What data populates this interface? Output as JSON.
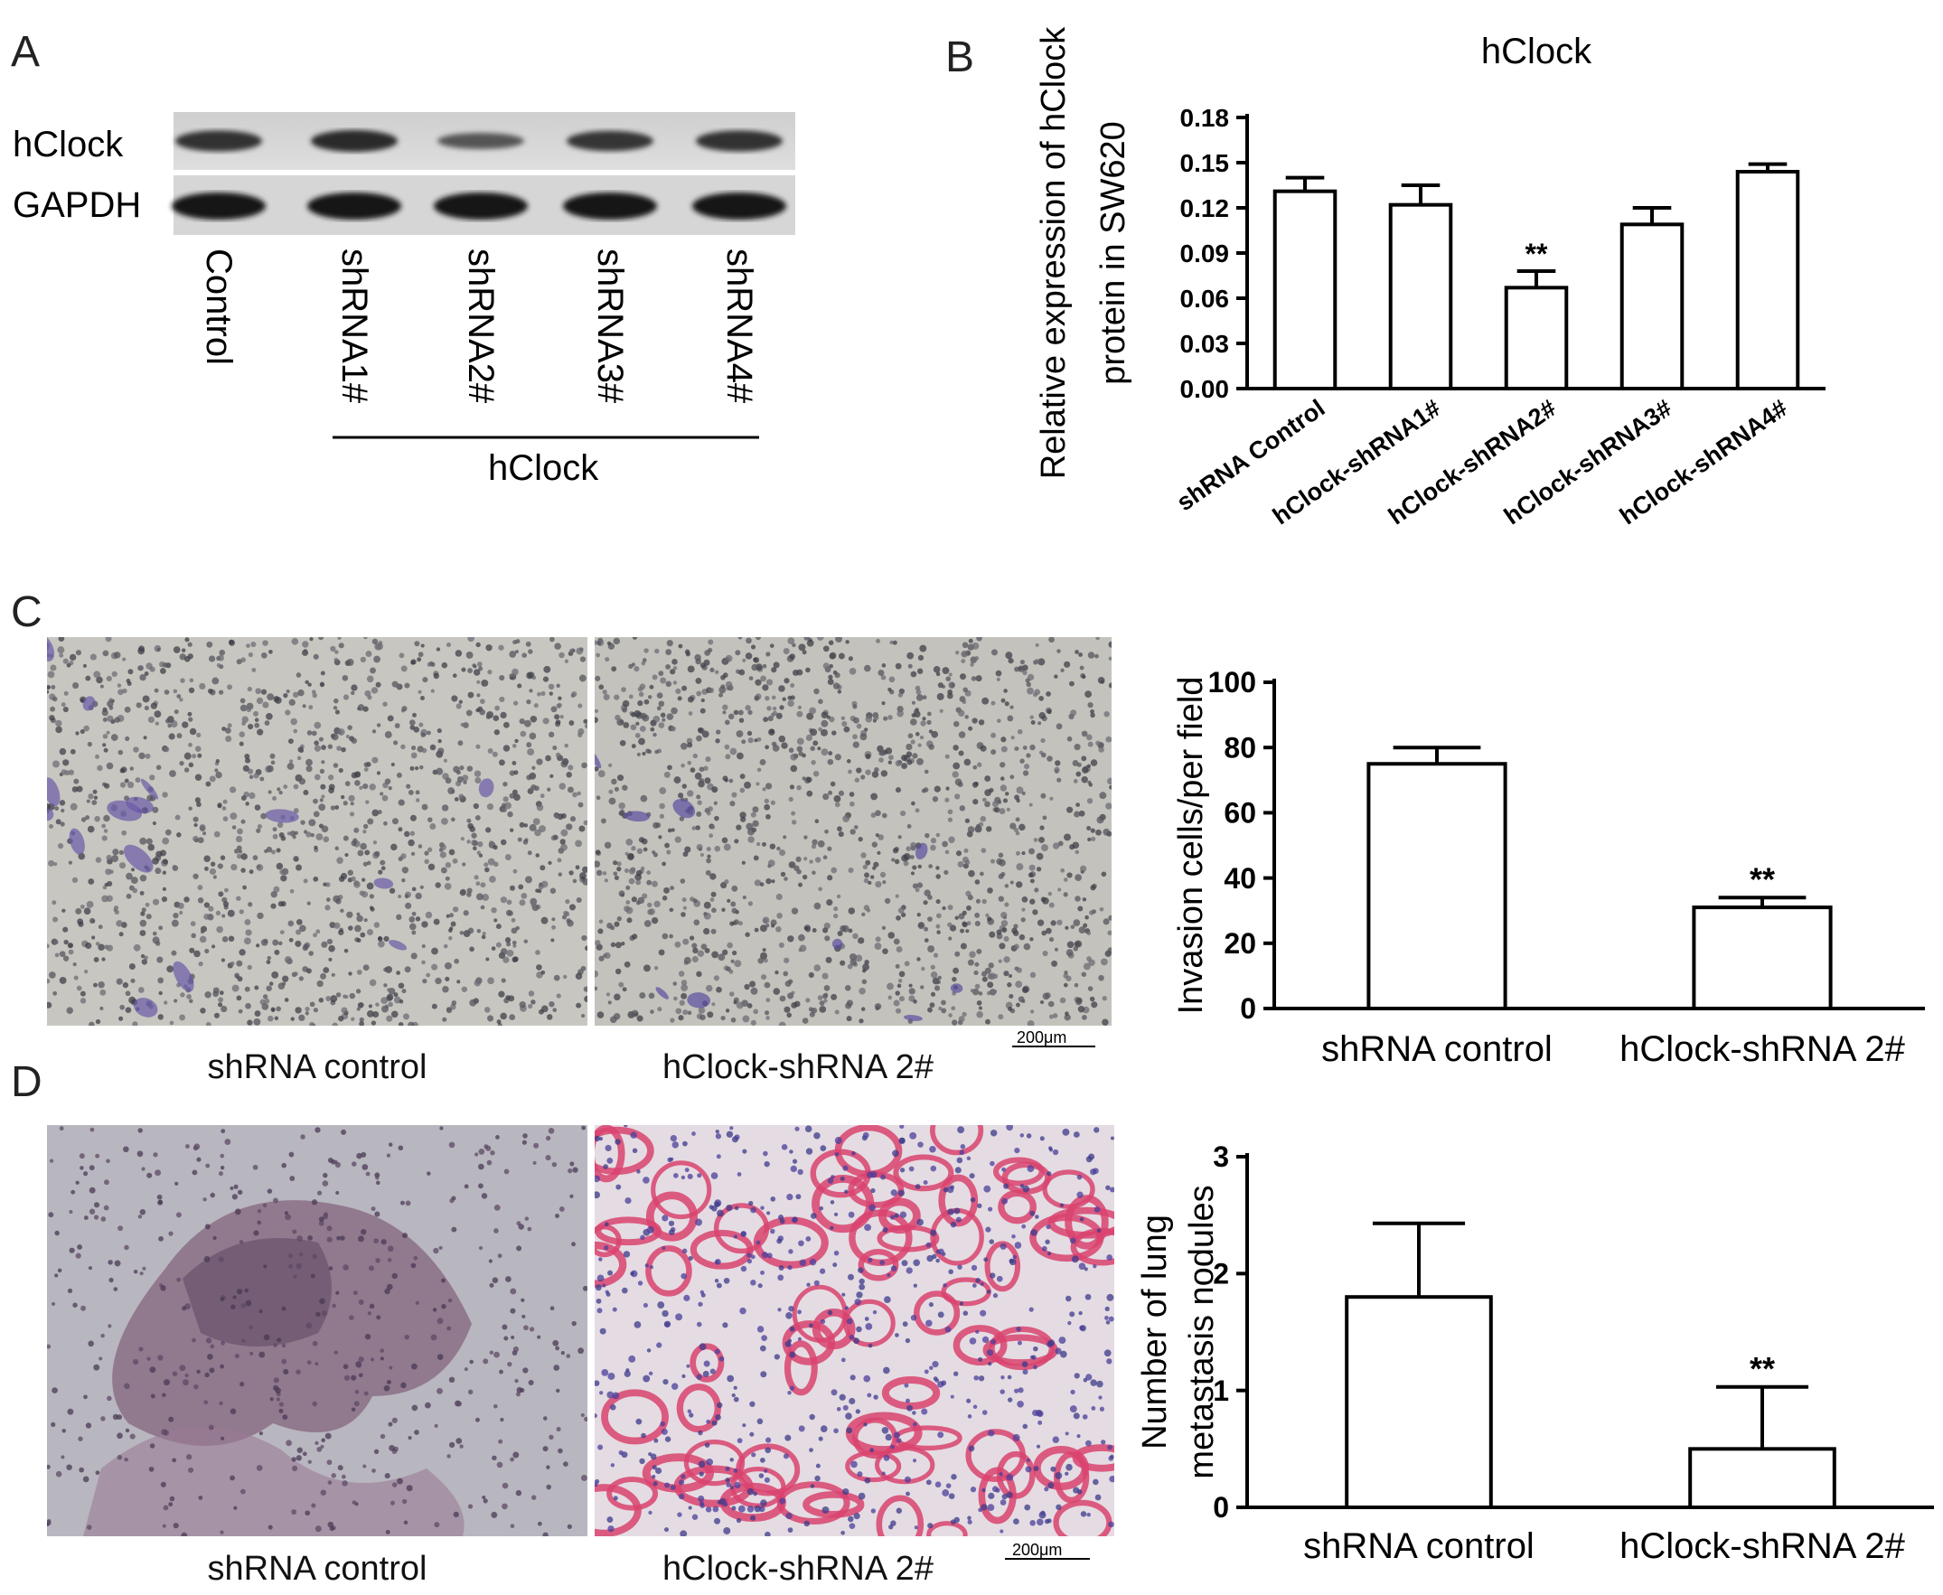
{
  "panels": {
    "a": {
      "letter": "A",
      "bands": [
        "hClock",
        "GAPDH"
      ],
      "lanes": [
        "Control",
        "shRNA1#",
        "shRNA2#",
        "shRNA3#",
        "shRNA4#"
      ],
      "group_label": "hClock",
      "band_intensity": {
        "hClock": [
          0.85,
          0.9,
          0.55,
          0.8,
          0.85
        ],
        "GAPDH": [
          1.0,
          1.0,
          1.0,
          1.0,
          1.0
        ]
      }
    },
    "b": {
      "letter": "B"
    },
    "c": {
      "letter": "C",
      "captions": [
        "shRNA control",
        "hClock-shRNA 2#"
      ],
      "scale_bar": "200μm"
    },
    "d": {
      "letter": "D",
      "captions": [
        "shRNA control",
        "hClock-shRNA 2#"
      ],
      "scale_bar": "200μm"
    }
  },
  "chart_data": [
    {
      "id": "b",
      "type": "bar",
      "title": "hClock",
      "ylabel": [
        "Relative expression of hClock",
        "protein in SW620"
      ],
      "categories": [
        "shRNA Control",
        "hClock-shRNA1#",
        "hClock-shRNA2#",
        "hClock-shRNA3#",
        "hClock-shRNA4#"
      ],
      "values": [
        0.131,
        0.122,
        0.067,
        0.109,
        0.144
      ],
      "errors": [
        0.009,
        0.013,
        0.011,
        0.011,
        0.005
      ],
      "annotations": [
        "",
        "",
        "**",
        "",
        ""
      ],
      "ylim": [
        0,
        0.18
      ],
      "yticks": [
        "0.00",
        "0.03",
        "0.06",
        "0.09",
        "0.12",
        "0.15",
        "0.18"
      ]
    },
    {
      "id": "c",
      "type": "bar",
      "title": "",
      "ylabel": [
        "Invasion cells/per field"
      ],
      "categories": [
        "shRNA control",
        "hClock-shRNA 2#"
      ],
      "values": [
        75,
        31
      ],
      "errors": [
        5,
        3
      ],
      "annotations": [
        "",
        "**"
      ],
      "ylim": [
        0,
        100
      ],
      "yticks": [
        "0",
        "20",
        "40",
        "60",
        "80",
        "100"
      ]
    },
    {
      "id": "d",
      "type": "bar",
      "title": "",
      "ylabel": [
        "Number of lung",
        "metastasis nodules"
      ],
      "categories": [
        "shRNA control",
        "hClock-shRNA 2#"
      ],
      "values": [
        1.8,
        0.5
      ],
      "errors": [
        0.63,
        0.53
      ],
      "annotations": [
        "",
        "**"
      ],
      "ylim": [
        0,
        3
      ],
      "yticks": [
        "0",
        "1",
        "2",
        "3"
      ]
    }
  ]
}
